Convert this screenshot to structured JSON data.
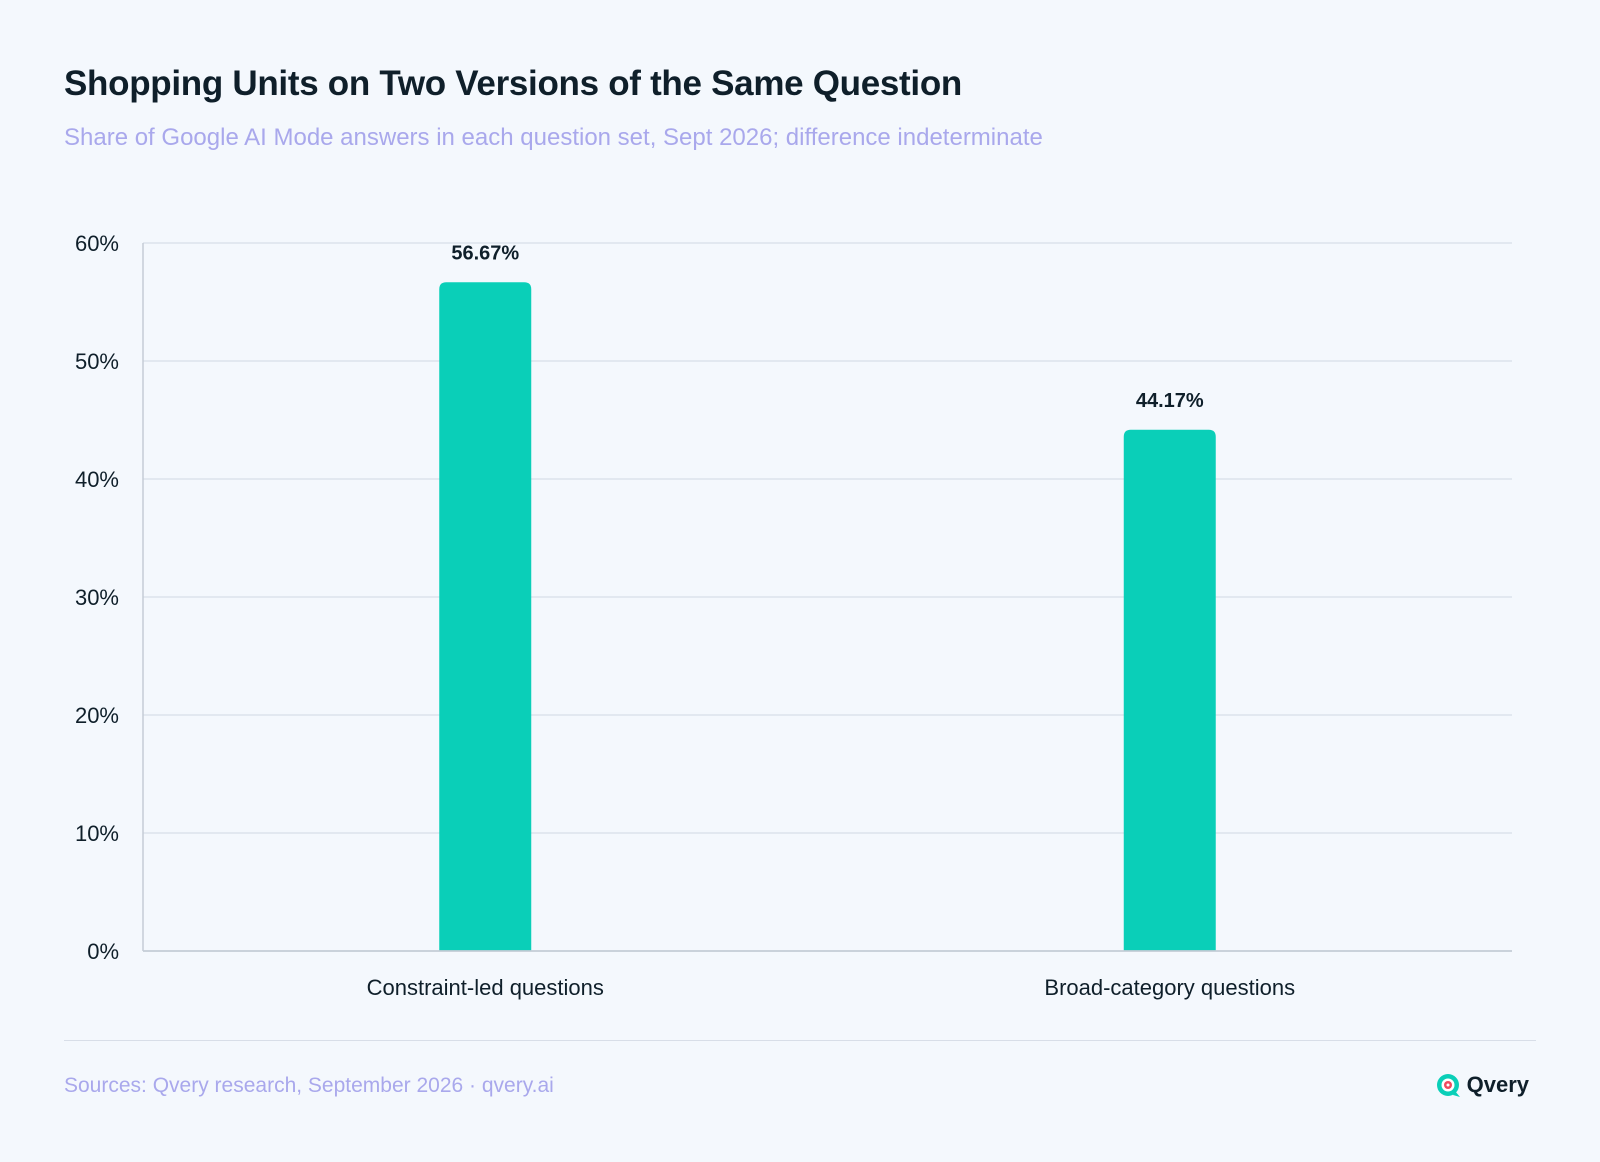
{
  "header": {
    "title": "Shopping Units on Two Versions of the Same Question",
    "subtitle": "Share of Google AI Mode answers in each question set, Sept 2026; difference indeterminate"
  },
  "chart_data": {
    "type": "bar",
    "title": "Shopping Units on Two Versions of the Same Question",
    "subtitle": "Share of Google AI Mode answers in each question set, Sept 2026; difference indeterminate",
    "categories": [
      "Constraint-led questions",
      "Broad-category questions"
    ],
    "values": [
      56.67,
      44.17
    ],
    "data_labels": [
      "56.67%",
      "44.17%"
    ],
    "ylim": [
      0,
      60
    ],
    "yticks": [
      0,
      10,
      20,
      30,
      40,
      50,
      60
    ],
    "ytick_labels": [
      "0%",
      "10%",
      "20%",
      "30%",
      "40%",
      "50%",
      "60%"
    ],
    "xlabel": "",
    "ylabel": "",
    "grid": true,
    "legend": "none",
    "colors": {
      "bar": "#0acfb8",
      "grid": "#d8dee8",
      "axis": "#c5ccd6",
      "text": "#0f1f2a"
    }
  },
  "footer": {
    "sources": "Sources: Qvery research, September 2026 · qvery.ai",
    "brand_name": "Qvery",
    "brand_icon": "qvery-logo-icon"
  }
}
